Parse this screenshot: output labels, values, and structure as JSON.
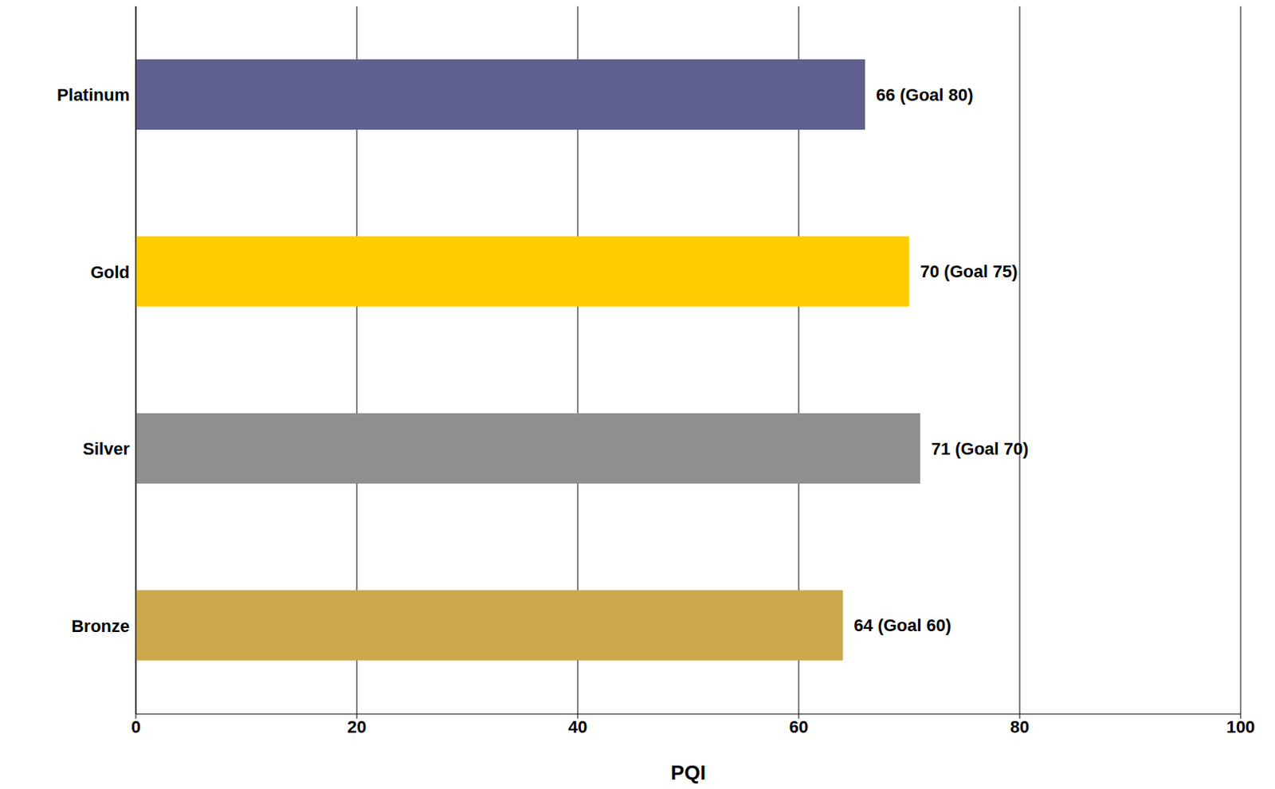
{
  "chart_data": {
    "type": "bar",
    "orientation": "horizontal",
    "categories": [
      "Platinum",
      "Gold",
      "Silver",
      "Bronze"
    ],
    "values": [
      66,
      70,
      71,
      64
    ],
    "value_labels": [
      "66  (Goal 80)",
      "70 (Goal 75)",
      "71 (Goal 70)",
      "64 (Goal 60)"
    ],
    "colors": [
      "#606090",
      "#ffcc00",
      "#8f8f8f",
      "#cca84a"
    ],
    "x_label": "PQI",
    "xlim": [
      0,
      100
    ],
    "xticks": [
      0,
      20,
      40,
      60,
      80,
      100
    ],
    "grid": true,
    "data_labels": true
  }
}
